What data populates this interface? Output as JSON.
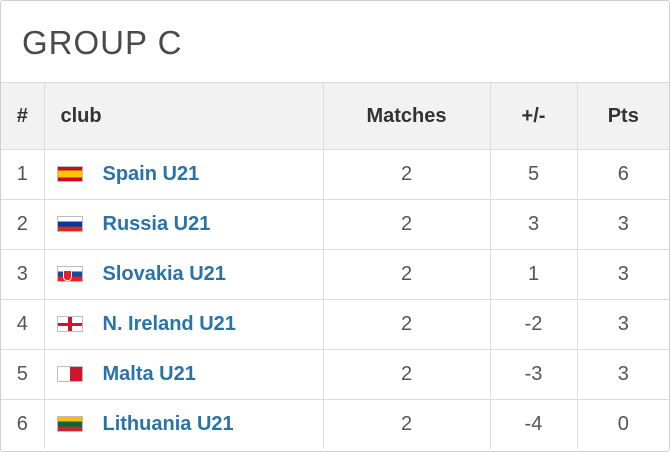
{
  "group_title": "GROUP C",
  "headers": {
    "rank": "#",
    "club": "club",
    "matches": "Matches",
    "goal_diff": "+/-",
    "points": "Pts"
  },
  "rows": [
    {
      "rank": "1",
      "flag_icon": "spain-flag-icon",
      "club": "Spain U21",
      "matches": "2",
      "goal_diff": "5",
      "points": "6"
    },
    {
      "rank": "2",
      "flag_icon": "russia-flag-icon",
      "club": "Russia U21",
      "matches": "2",
      "goal_diff": "3",
      "points": "3"
    },
    {
      "rank": "3",
      "flag_icon": "slovakia-flag-icon",
      "club": "Slovakia U21",
      "matches": "2",
      "goal_diff": "1",
      "points": "3"
    },
    {
      "rank": "4",
      "flag_icon": "northern-ireland-flag-icon",
      "club": "N. Ireland U21",
      "matches": "2",
      "goal_diff": "-2",
      "points": "3"
    },
    {
      "rank": "5",
      "flag_icon": "malta-flag-icon",
      "club": "Malta U21",
      "matches": "2",
      "goal_diff": "-3",
      "points": "3"
    },
    {
      "rank": "6",
      "flag_icon": "lithuania-flag-icon",
      "club": "Lithuania U21",
      "matches": "2",
      "goal_diff": "-4",
      "points": "0"
    }
  ],
  "colors": {
    "link": "#2a73a8",
    "header_bg": "#f2f2f2",
    "border": "#dcdcdc"
  }
}
